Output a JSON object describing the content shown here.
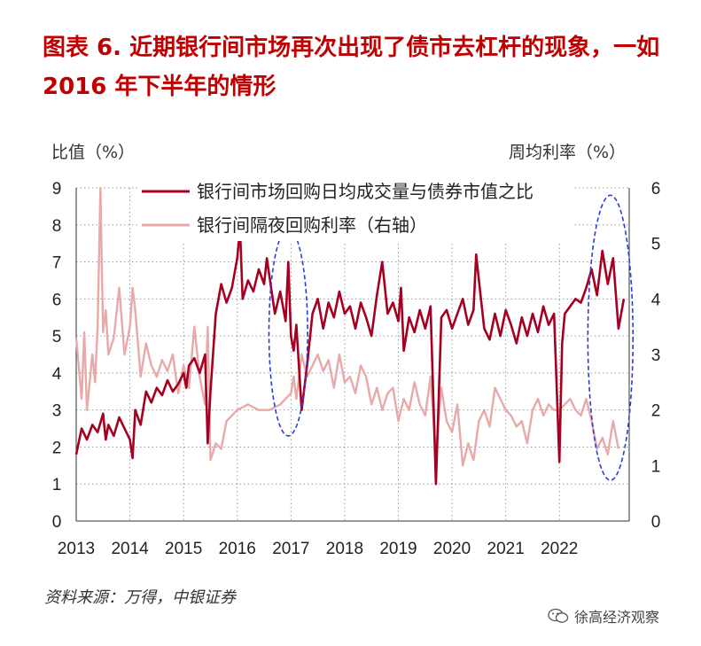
{
  "title": "图表 6.  近期银行间市场再次出现了债市去杠杆的现象，一如 2016 年下半年的情形",
  "source": "资料来源：万得，中银证券",
  "watermark": "徐高经济观察",
  "colors": {
    "series1": "#a50021",
    "series2": "#e8a9a9",
    "ellipse": "#2a3fd6",
    "grid": "#9a9a9a"
  },
  "chart_data": {
    "type": "line",
    "left_axis_label": "比值（%）",
    "right_axis_label": "周均利率（%）",
    "x_ticks": [
      "2013",
      "2014",
      "2015",
      "2016",
      "2017",
      "2018",
      "2019",
      "2020",
      "2021",
      "2022"
    ],
    "xlim": [
      2013,
      2023.3
    ],
    "ylim_left": [
      0,
      9
    ],
    "ylim_right": [
      0,
      6
    ],
    "y_ticks_left": [
      "0",
      "1",
      "2",
      "3",
      "4",
      "5",
      "6",
      "7",
      "8",
      "9"
    ],
    "y_ticks_right": [
      "0",
      "1",
      "2",
      "3",
      "4",
      "5",
      "6"
    ],
    "grid": "dotted",
    "legend_position": "top-center",
    "series": [
      {
        "name": "银行间市场回购日均成交量与债券市值之比",
        "axis": "left",
        "x": [
          2013.0,
          2013.1,
          2013.2,
          2013.3,
          2013.4,
          2013.5,
          2013.55,
          2013.6,
          2013.7,
          2013.8,
          2013.9,
          2014.0,
          2014.05,
          2014.1,
          2014.2,
          2014.3,
          2014.4,
          2014.5,
          2014.6,
          2014.7,
          2014.8,
          2014.9,
          2015.0,
          2015.05,
          2015.1,
          2015.2,
          2015.3,
          2015.4,
          2015.45,
          2015.5,
          2015.6,
          2015.7,
          2015.8,
          2015.9,
          2016.0,
          2016.05,
          2016.1,
          2016.2,
          2016.3,
          2016.4,
          2016.5,
          2016.55,
          2016.6,
          2016.7,
          2016.8,
          2016.9,
          2016.95,
          2017.0,
          2017.05,
          2017.1,
          2017.2,
          2017.3,
          2017.4,
          2017.5,
          2017.6,
          2017.7,
          2017.8,
          2017.9,
          2018.0,
          2018.1,
          2018.2,
          2018.3,
          2018.4,
          2018.5,
          2018.6,
          2018.7,
          2018.8,
          2018.9,
          2019.0,
          2019.05,
          2019.1,
          2019.2,
          2019.3,
          2019.4,
          2019.5,
          2019.6,
          2019.7,
          2019.8,
          2019.9,
          2020.0,
          2020.1,
          2020.2,
          2020.3,
          2020.4,
          2020.45,
          2020.5,
          2020.6,
          2020.7,
          2020.8,
          2020.9,
          2021.0,
          2021.1,
          2021.2,
          2021.3,
          2021.4,
          2021.5,
          2021.6,
          2021.7,
          2021.8,
          2021.9,
          2022.0,
          2022.05,
          2022.1,
          2022.2,
          2022.3,
          2022.4,
          2022.5,
          2022.6,
          2022.7,
          2022.8,
          2022.9,
          2023.0,
          2023.1,
          2023.2
        ],
        "y": [
          1.8,
          2.5,
          2.2,
          2.6,
          2.4,
          2.9,
          2.2,
          2.6,
          2.3,
          2.8,
          2.5,
          2.2,
          1.7,
          3.0,
          2.6,
          3.5,
          3.2,
          3.6,
          3.4,
          3.8,
          3.5,
          3.7,
          4.0,
          3.6,
          4.2,
          4.4,
          4.0,
          4.5,
          2.1,
          3.5,
          5.6,
          6.4,
          5.9,
          6.3,
          7.1,
          7.9,
          6.0,
          6.5,
          6.2,
          6.8,
          6.4,
          7.1,
          6.6,
          5.6,
          6.2,
          5.4,
          7.0,
          5.0,
          4.6,
          5.3,
          3.0,
          4.2,
          5.6,
          6.0,
          5.2,
          5.9,
          5.5,
          6.2,
          5.6,
          5.8,
          5.2,
          5.9,
          5.5,
          5.0,
          6.1,
          7.0,
          5.6,
          5.9,
          5.4,
          6.3,
          4.6,
          5.5,
          5.1,
          5.7,
          5.2,
          5.8,
          1.0,
          5.5,
          5.7,
          5.2,
          5.6,
          6.0,
          5.3,
          5.7,
          7.2,
          6.5,
          5.2,
          4.9,
          5.6,
          5.0,
          5.7,
          5.3,
          4.8,
          5.5,
          5.0,
          5.6,
          5.1,
          5.8,
          5.3,
          5.6,
          1.6,
          4.8,
          5.6,
          5.8,
          6.0,
          5.9,
          6.3,
          6.8,
          6.1,
          7.3,
          6.4,
          7.1,
          5.2,
          6.0
        ]
      },
      {
        "name": "银行间隔夜回购利率（右轴）",
        "axis": "right",
        "x": [
          2013.0,
          2013.1,
          2013.15,
          2013.2,
          2013.3,
          2013.35,
          2013.4,
          2013.45,
          2013.5,
          2013.55,
          2013.6,
          2013.7,
          2013.8,
          2013.9,
          2014.0,
          2014.05,
          2014.1,
          2014.2,
          2014.3,
          2014.4,
          2014.5,
          2014.6,
          2014.7,
          2014.8,
          2014.9,
          2015.0,
          2015.1,
          2015.2,
          2015.3,
          2015.4,
          2015.45,
          2015.5,
          2015.6,
          2015.7,
          2015.8,
          2015.9,
          2016.0,
          2016.2,
          2016.4,
          2016.6,
          2016.8,
          2016.9,
          2017.0,
          2017.05,
          2017.1,
          2017.2,
          2017.3,
          2017.4,
          2017.5,
          2017.6,
          2017.7,
          2017.8,
          2017.9,
          2018.0,
          2018.1,
          2018.2,
          2018.3,
          2018.4,
          2018.5,
          2018.6,
          2018.7,
          2018.8,
          2018.9,
          2019.0,
          2019.1,
          2019.2,
          2019.3,
          2019.4,
          2019.5,
          2019.6,
          2019.7,
          2019.8,
          2019.9,
          2020.0,
          2020.1,
          2020.2,
          2020.3,
          2020.4,
          2020.5,
          2020.6,
          2020.7,
          2020.8,
          2020.9,
          2021.0,
          2021.1,
          2021.2,
          2021.3,
          2021.4,
          2021.5,
          2021.6,
          2021.7,
          2021.8,
          2021.9,
          2022.0,
          2022.1,
          2022.2,
          2022.3,
          2022.4,
          2022.5,
          2022.6,
          2022.7,
          2022.8,
          2022.9,
          2023.0,
          2023.1
        ],
        "y": [
          3.3,
          2.2,
          3.4,
          2.0,
          3.0,
          2.5,
          3.5,
          6.0,
          3.4,
          3.8,
          3.0,
          3.3,
          4.2,
          3.0,
          3.5,
          4.2,
          3.8,
          2.6,
          3.2,
          2.8,
          2.6,
          2.9,
          2.7,
          3.0,
          2.3,
          2.8,
          2.4,
          3.5,
          2.6,
          2.1,
          3.5,
          1.1,
          1.4,
          1.3,
          1.8,
          1.9,
          2.0,
          2.1,
          2.0,
          2.0,
          2.1,
          2.2,
          2.3,
          2.6,
          2.2,
          3.0,
          2.6,
          2.8,
          3.0,
          2.7,
          2.9,
          2.4,
          3.0,
          2.5,
          2.6,
          2.3,
          2.8,
          2.6,
          2.1,
          2.4,
          2.0,
          2.3,
          2.4,
          1.8,
          2.2,
          2.0,
          2.5,
          2.1,
          1.9,
          2.6,
          1.2,
          2.4,
          1.8,
          1.6,
          2.1,
          1.0,
          1.4,
          1.1,
          1.8,
          2.0,
          1.7,
          2.4,
          2.2,
          2.0,
          1.9,
          1.7,
          1.8,
          1.4,
          2.0,
          2.2,
          1.9,
          2.1,
          2.0,
          2.0,
          2.1,
          2.2,
          2.0,
          1.9,
          2.2,
          1.8,
          1.3,
          1.5,
          1.2,
          1.8,
          1.3
        ]
      }
    ],
    "annotations": [
      {
        "type": "ellipse",
        "cx": 2016.95,
        "cy": 5.1,
        "rx": 0.36,
        "ry": 2.8,
        "axis": "left"
      },
      {
        "type": "ellipse",
        "cx": 2022.95,
        "cy": 4.95,
        "rx": 0.42,
        "ry": 3.85,
        "axis": "left"
      }
    ]
  }
}
